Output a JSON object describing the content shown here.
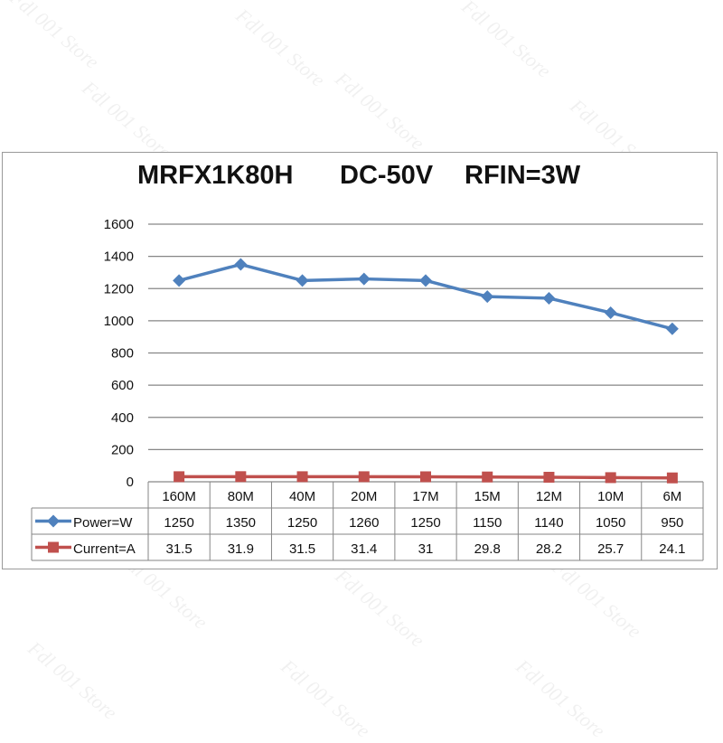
{
  "watermark": "Fdl 001 Store",
  "colors": {
    "power": "#4f81bd",
    "current": "#c0504d",
    "grid": "#868686",
    "frame": "#9a9a9a"
  },
  "chart_data": {
    "type": "line",
    "title_parts": [
      "MRFX1K80H",
      "DC-50V",
      "RFIN=3W"
    ],
    "categories": [
      "160M",
      "80M",
      "40M",
      "20M",
      "17M",
      "15M",
      "12M",
      "10M",
      "6M"
    ],
    "ylim": [
      0,
      1600
    ],
    "yticks": [
      0,
      200,
      400,
      600,
      800,
      1000,
      1200,
      1400,
      1600
    ],
    "grid": true,
    "legend": "data-table",
    "series": [
      {
        "name": "Power=W",
        "marker": "diamond",
        "values": [
          1250,
          1350,
          1250,
          1260,
          1250,
          1150,
          1140,
          1050,
          950
        ]
      },
      {
        "name": "Current=A",
        "marker": "square",
        "values": [
          31.5,
          31.9,
          31.5,
          31.4,
          31,
          29.8,
          28.2,
          25.7,
          24.1
        ]
      }
    ]
  }
}
